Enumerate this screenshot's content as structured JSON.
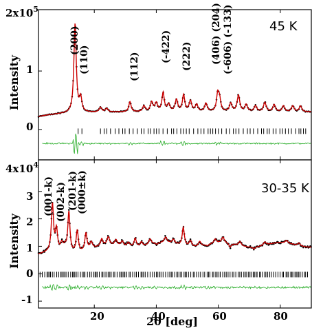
{
  "chart_data": [
    {
      "type": "line",
      "panel": "top",
      "temperature": "45 K",
      "ylabel": "Intensity",
      "y_scale_label": "2x10",
      "y_scale_exponent": "5",
      "yticks": [
        "0",
        "1"
      ],
      "xlim": [
        2,
        90
      ],
      "ylim_display": [
        -0.52,
        2.05
      ],
      "peaks": [
        {
          "hkl": "(200)",
          "x": 13.8,
          "y": 1.81
        },
        {
          "hkl": "(110)",
          "x": 15.6,
          "y": 0.52
        },
        {
          "hkl": "(112)",
          "x": 31.5,
          "y": 0.47
        },
        {
          "hkl": "(-422)",
          "x": 42.2,
          "y": 0.62
        },
        {
          "hkl": "(222)",
          "x": 48.8,
          "y": 0.58
        },
        {
          "hkl": "(406) (204)",
          "x": 59.8,
          "y": 0.59
        },
        {
          "hkl": "(-606) (-133)",
          "x": 60.4,
          "y": 0.5
        }
      ],
      "baseline": 0.3,
      "difference_offset": -0.24,
      "tick_row_y": -0.03,
      "colors": {
        "observed": "#000000",
        "calculated": "#cc0000",
        "difference": "#22aa22",
        "ticks": "#000000"
      }
    },
    {
      "type": "line",
      "panel": "bottom",
      "temperature": "30-35 K",
      "ylabel": "Intensity",
      "xlabel_text": "2",
      "xlabel_theta": "θ",
      "xlabel_unit": " [deg]",
      "y_scale_label": "4x10",
      "y_scale_exponent": "4",
      "yticks": [
        "-1",
        "0",
        "1",
        "2",
        "3"
      ],
      "xticks": [
        "20",
        "40",
        "60",
        "80"
      ],
      "xlim": [
        2,
        90
      ],
      "ylim_display": [
        -1.25,
        4.15
      ],
      "peak_labels": [
        "(001-k)",
        "(002-k)",
        "(201-k)",
        "(000±k)"
      ],
      "peaks": [
        {
          "x": 6.5,
          "y": 2.5
        },
        {
          "x": 7.8,
          "y": 1.55
        },
        {
          "x": 11.8,
          "y": 2.22
        },
        {
          "x": 14.5,
          "y": 1.55
        },
        {
          "x": 17.3,
          "y": 1.45
        },
        {
          "x": 22.4,
          "y": 1.25
        },
        {
          "x": 33.2,
          "y": 1.28
        },
        {
          "x": 35.2,
          "y": 1.15
        },
        {
          "x": 40.2,
          "y": 1.05
        },
        {
          "x": 48.7,
          "y": 1.68
        },
        {
          "x": 56.5,
          "y": 1.0
        },
        {
          "x": 63.8,
          "y": 0.95
        },
        {
          "x": 71.5,
          "y": 0.9
        }
      ],
      "baseline_start": 0.65,
      "baseline_end": 1.05,
      "difference_offset": -0.5,
      "tick_row_y": -0.03,
      "colors": {
        "observed": "#000000",
        "calculated": "#cc0000",
        "difference": "#22aa22",
        "ticks": "#000000"
      }
    }
  ]
}
